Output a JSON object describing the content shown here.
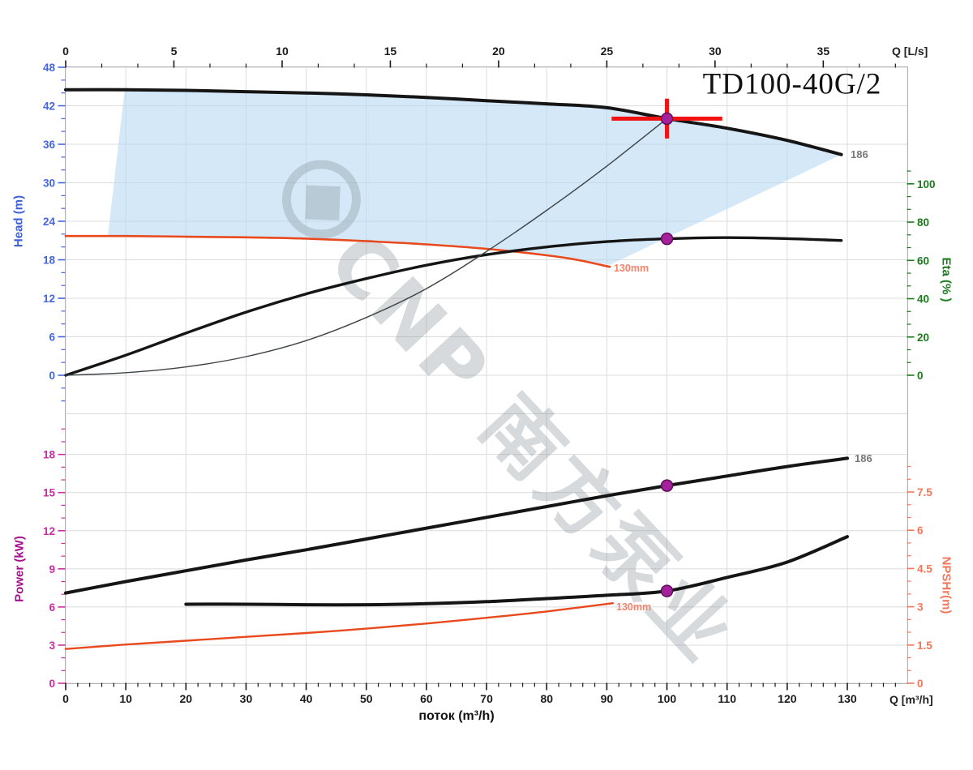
{
  "title": "TD100-40G/2",
  "watermark": {
    "text": "CNP 南方泵业",
    "logo": "cnp-logo",
    "color": "rgba(130,143,150,0.33)"
  },
  "labels": {
    "flow_axis": "поток (m³/h)",
    "q_top_unit": "Q [L/s]",
    "q_bottom_unit": "Q [m³/h]",
    "head_axis": "Head (m)",
    "eta_axis": "Eta (% )",
    "power_axis": "Power (kW)",
    "npshr_axis": "NPSHr(m)"
  },
  "chart_data": {
    "type": "line",
    "title": "TD100-40G/2",
    "x_unit_bottom": "m³/h",
    "x_unit_top": "L/s",
    "axes": [
      {
        "id": "x-top",
        "pos": "top",
        "scale": "ls",
        "min": 0,
        "max": 38.8,
        "major": 5,
        "minor": 1.66667,
        "label_max": 35,
        "color": "#1a1a1a"
      },
      {
        "id": "x-bottom",
        "pos": "bottom",
        "scale": "q",
        "min": 0,
        "max": 139,
        "major": 10,
        "minor": 2,
        "label_max": 130,
        "color": "#1a1a1a"
      },
      {
        "id": "head",
        "pos": "left",
        "scale": "head",
        "min": -4,
        "max": 48,
        "major": 6,
        "minor": 2,
        "label_max": 48,
        "color": "#4565de"
      },
      {
        "id": "eta",
        "pos": "right",
        "scale": "eta",
        "min": 0,
        "max": 108,
        "major": 20,
        "minor": 6.66667,
        "label_max": 100,
        "color": "#1d7a1d"
      },
      {
        "id": "power",
        "pos": "left",
        "scale": "power",
        "min": 0,
        "max": 20,
        "major": 3,
        "minor": 1,
        "label_max": 18,
        "color": "#cb2da0"
      },
      {
        "id": "npshr",
        "pos": "right",
        "scale": "npshr",
        "min": 0,
        "max": 8.6,
        "major": 1.5,
        "minor": 0.5,
        "label_max": 7.5,
        "color": "#f4775a"
      }
    ],
    "series": [
      {
        "name": "head-186",
        "panel": "top",
        "y_axis": "left",
        "color": "#151515",
        "width": 4,
        "label": "186",
        "points": [
          [
            0,
            44.5
          ],
          [
            10,
            44.5
          ],
          [
            20,
            44.4
          ],
          [
            30,
            44.2
          ],
          [
            40,
            44.0
          ],
          [
            50,
            43.7
          ],
          [
            60,
            43.3
          ],
          [
            70,
            42.8
          ],
          [
            80,
            42.3
          ],
          [
            90,
            41.7
          ],
          [
            100,
            40.0
          ],
          [
            110,
            38.5
          ],
          [
            120,
            36.6
          ],
          [
            129,
            34.4
          ]
        ]
      },
      {
        "name": "head-130mm",
        "panel": "top",
        "y_axis": "left",
        "color": "#e8491d",
        "width": 2.6,
        "label": "130mm",
        "points": [
          [
            0,
            21.7
          ],
          [
            10,
            21.7
          ],
          [
            20,
            21.6
          ],
          [
            30,
            21.5
          ],
          [
            40,
            21.3
          ],
          [
            50,
            20.9
          ],
          [
            60,
            20.4
          ],
          [
            70,
            19.7
          ],
          [
            80,
            18.7
          ],
          [
            85,
            18.0
          ],
          [
            90.5,
            16.9
          ]
        ]
      },
      {
        "name": "eta-186",
        "panel": "top",
        "y_axis": "right",
        "color": "#151515",
        "width": 3.4,
        "label": null,
        "points": [
          [
            0,
            0
          ],
          [
            10,
            10.5
          ],
          [
            20,
            22
          ],
          [
            30,
            33
          ],
          [
            40,
            42.5
          ],
          [
            50,
            50.5
          ],
          [
            60,
            57.5
          ],
          [
            70,
            63
          ],
          [
            80,
            67
          ],
          [
            90,
            69.8
          ],
          [
            100,
            71.3
          ],
          [
            110,
            71.9
          ],
          [
            120,
            71.4
          ],
          [
            129,
            70.4
          ]
        ]
      },
      {
        "name": "system-resistance",
        "panel": "top",
        "y_axis": "left",
        "color": "#3d4446",
        "width": 1.4,
        "label": null,
        "points": [
          [
            0,
            0
          ],
          [
            10,
            0.4
          ],
          [
            20,
            1.3
          ],
          [
            30,
            2.9
          ],
          [
            40,
            5.4
          ],
          [
            50,
            9.0
          ],
          [
            60,
            13.5
          ],
          [
            70,
            19.3
          ],
          [
            80,
            25.7
          ],
          [
            90,
            32.6
          ],
          [
            100,
            40.0
          ]
        ]
      },
      {
        "name": "power-186",
        "panel": "bottom",
        "y_axis": "left",
        "color": "#151515",
        "width": 4,
        "label": "186",
        "points": [
          [
            0,
            7.1
          ],
          [
            10,
            8.0
          ],
          [
            20,
            8.85
          ],
          [
            30,
            9.7
          ],
          [
            40,
            10.5
          ],
          [
            50,
            11.35
          ],
          [
            60,
            12.2
          ],
          [
            70,
            13.05
          ],
          [
            80,
            13.9
          ],
          [
            90,
            14.75
          ],
          [
            100,
            15.55
          ],
          [
            110,
            16.3
          ],
          [
            120,
            17.05
          ],
          [
            130,
            17.7
          ]
        ]
      },
      {
        "name": "power-130mm",
        "panel": "bottom",
        "y_axis": "left",
        "color": "#e8491d",
        "width": 2.4,
        "label": "130mm",
        "points": [
          [
            0,
            2.7
          ],
          [
            10,
            3.05
          ],
          [
            20,
            3.35
          ],
          [
            30,
            3.65
          ],
          [
            40,
            3.95
          ],
          [
            50,
            4.3
          ],
          [
            60,
            4.7
          ],
          [
            70,
            5.15
          ],
          [
            80,
            5.65
          ],
          [
            91,
            6.3
          ]
        ]
      },
      {
        "name": "npshr-186",
        "panel": "bottom",
        "y_axis": "right",
        "color": "#151515",
        "width": 4,
        "label": null,
        "points": [
          [
            20,
            3.1
          ],
          [
            30,
            3.1
          ],
          [
            40,
            3.08
          ],
          [
            50,
            3.08
          ],
          [
            60,
            3.12
          ],
          [
            70,
            3.2
          ],
          [
            80,
            3.32
          ],
          [
            90,
            3.45
          ],
          [
            100,
            3.62
          ],
          [
            110,
            4.15
          ],
          [
            120,
            4.75
          ],
          [
            130,
            5.75
          ]
        ]
      }
    ],
    "operating_region": {
      "color": "#b7d9f4",
      "opacity": 0.6,
      "polygon": [
        [
          7,
          21.6
        ],
        [
          9.8,
          44.45
        ],
        [
          20,
          44.4
        ],
        [
          30,
          44.2
        ],
        [
          40,
          44.0
        ],
        [
          50,
          43.7
        ],
        [
          60,
          43.3
        ],
        [
          70,
          42.8
        ],
        [
          80,
          42.3
        ],
        [
          90,
          41.7
        ],
        [
          100,
          40.0
        ],
        [
          110,
          38.5
        ],
        [
          120,
          36.6
        ],
        [
          129,
          34.4
        ],
        [
          90.5,
          17.2
        ],
        [
          80,
          18.8
        ],
        [
          70,
          19.8
        ],
        [
          60,
          20.5
        ],
        [
          50,
          21.0
        ],
        [
          40,
          21.35
        ],
        [
          30,
          21.55
        ],
        [
          20,
          21.65
        ],
        [
          10,
          21.7
        ]
      ]
    },
    "duty_point": {
      "q_m3h": 100,
      "head_m": 40.0,
      "eta_pct": 71.3,
      "power_kw": 15.55,
      "npshr_m": 3.62,
      "cross_halfwidth_m3h": 9.2,
      "cross_halfheight_m": 3.1,
      "cross_color": "#f21212",
      "marker_color": "#a5209b",
      "marker_edge": "#5f0d59"
    },
    "grid": {
      "color": "#dcdcdc",
      "border_color": "#b0b0b0"
    }
  }
}
